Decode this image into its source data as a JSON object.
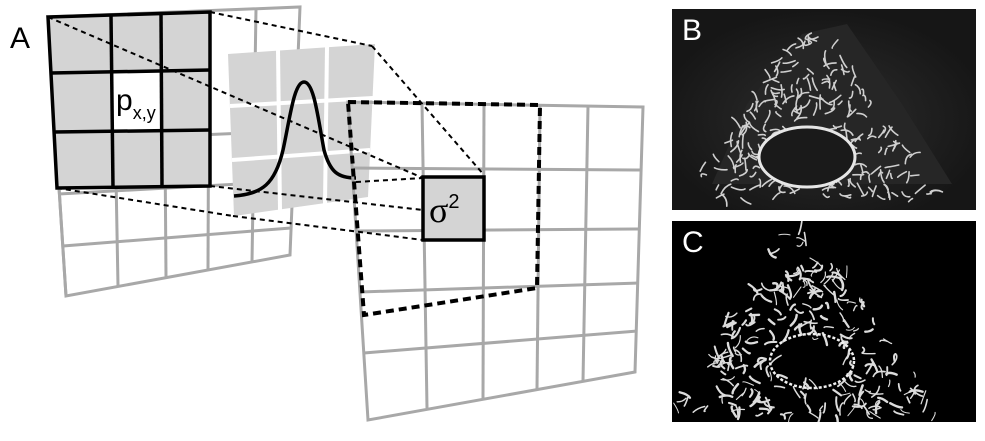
{
  "panel_a": {
    "label": "A",
    "pixel_label": {
      "main": "p",
      "subscript": "x,y"
    },
    "output_label": {
      "main": "σ",
      "superscript": "2"
    },
    "colors": {
      "fill_gray": "#d4d4d4",
      "grid_gray": "#a8a8a8",
      "ink": "#000000",
      "divider": "#ffffff"
    }
  },
  "panel_b": {
    "label": "B"
  },
  "panel_c": {
    "label": "C"
  }
}
